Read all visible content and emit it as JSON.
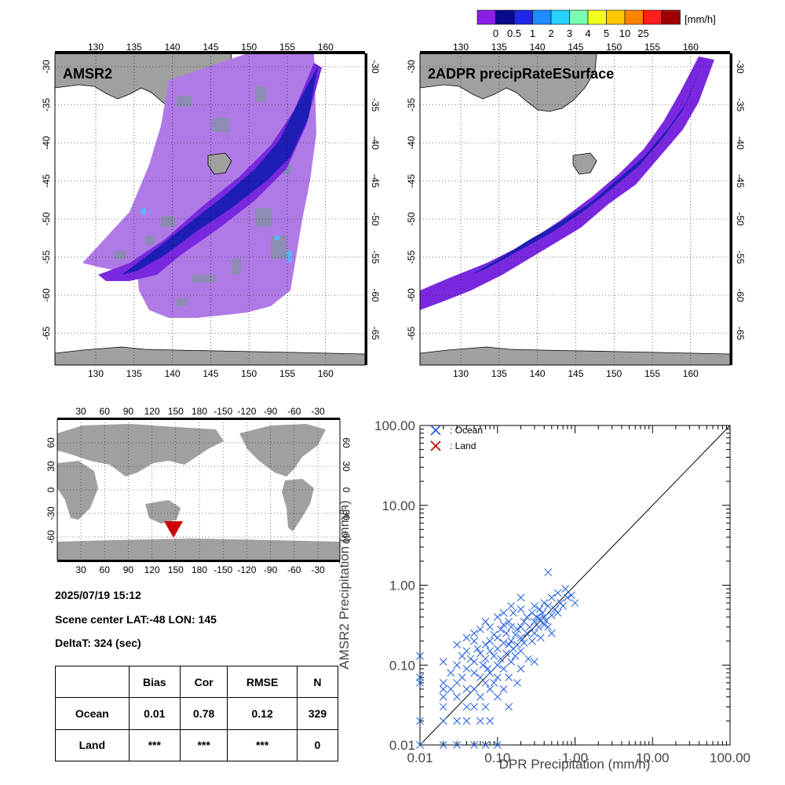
{
  "colorbar": {
    "unit": "[mm/h]",
    "labels": [
      "0",
      "0.5",
      "1",
      "2",
      "3",
      "4",
      "5",
      "10",
      "25"
    ],
    "colors": [
      "#8c1ee6",
      "#0a0a8c",
      "#1e28e6",
      "#1e8cff",
      "#28d2ff",
      "#78ffb4",
      "#f0ff1e",
      "#ffc800",
      "#ff8200",
      "#ff1e1e",
      "#a00000"
    ]
  },
  "map_left": {
    "title": "AMSR2",
    "lon_ticks": [
      "130",
      "135",
      "140",
      "145",
      "150",
      "155",
      "160"
    ],
    "lat_ticks": [
      "-30",
      "-35",
      "-40",
      "-45",
      "-50",
      "-55",
      "-60",
      "-65"
    ]
  },
  "map_right": {
    "title": "2ADPR precipRateESurface",
    "lon_ticks": [
      "130",
      "135",
      "140",
      "145",
      "150",
      "155",
      "160"
    ],
    "lat_ticks": [
      "-30",
      "-35",
      "-40",
      "-45",
      "-50",
      "-55",
      "-60",
      "-65"
    ]
  },
  "world_map": {
    "lon_ticks": [
      "30",
      "60",
      "90",
      "120",
      "150",
      "180",
      "-150",
      "-120",
      "-90",
      "-60",
      "-30"
    ],
    "lat_ticks": [
      "60",
      "30",
      "0",
      "-30",
      "-60"
    ],
    "marker_color": "#cc0000"
  },
  "info": {
    "datetime": "2025/07/19 15:12",
    "scene_center": "Scene center LAT:-48   LON: 145",
    "delta_t": "DeltaT:  324 (sec)"
  },
  "stats_table": {
    "headers": [
      "",
      "Bias",
      "Cor",
      "RMSE",
      "N"
    ],
    "rows": [
      [
        "Ocean",
        "0.01",
        "0.78",
        "0.12",
        "329"
      ],
      [
        "Land",
        "***",
        "***",
        "***",
        "0"
      ]
    ]
  },
  "chart_data": {
    "type": "scatter",
    "xlabel": "DPR Precipitation (mm/h)",
    "ylabel": "AMSR2 Precipitation (mm/h)",
    "xscale": "log",
    "yscale": "log",
    "xlim": [
      0.01,
      100
    ],
    "ylim": [
      0.01,
      100
    ],
    "x_tick_labels": [
      "0.01",
      "0.10",
      "1.00",
      "10.00",
      "100.00"
    ],
    "y_tick_labels": [
      "0.01",
      "0.10",
      "1.00",
      "10.00",
      "100.00"
    ],
    "legend_placement": "top-left",
    "series": [
      {
        "name": ": Ocean",
        "color": "#1e5adc",
        "marker": "x",
        "points": [
          [
            0.01,
            0.13
          ],
          [
            0.01,
            0.07
          ],
          [
            0.01,
            0.06
          ],
          [
            0.01,
            0.02
          ],
          [
            0.01,
            0.01
          ],
          [
            0.02,
            0.06
          ],
          [
            0.02,
            0.05
          ],
          [
            0.02,
            0.04
          ],
          [
            0.02,
            0.03
          ],
          [
            0.02,
            0.02
          ],
          [
            0.02,
            0.11
          ],
          [
            0.02,
            0.01
          ],
          [
            0.025,
            0.08
          ],
          [
            0.025,
            0.05
          ],
          [
            0.03,
            0.18
          ],
          [
            0.03,
            0.1
          ],
          [
            0.03,
            0.06
          ],
          [
            0.03,
            0.04
          ],
          [
            0.03,
            0.02
          ],
          [
            0.03,
            0.01
          ],
          [
            0.035,
            0.13
          ],
          [
            0.035,
            0.07
          ],
          [
            0.04,
            0.22
          ],
          [
            0.04,
            0.15
          ],
          [
            0.04,
            0.09
          ],
          [
            0.04,
            0.05
          ],
          [
            0.04,
            0.03
          ],
          [
            0.04,
            0.02
          ],
          [
            0.045,
            0.12
          ],
          [
            0.05,
            0.25
          ],
          [
            0.05,
            0.2
          ],
          [
            0.05,
            0.11
          ],
          [
            0.05,
            0.08
          ],
          [
            0.05,
            0.05
          ],
          [
            0.05,
            0.03
          ],
          [
            0.05,
            0.01
          ],
          [
            0.055,
            0.16
          ],
          [
            0.06,
            0.28
          ],
          [
            0.06,
            0.14
          ],
          [
            0.06,
            0.07
          ],
          [
            0.06,
            0.04
          ],
          [
            0.06,
            0.02
          ],
          [
            0.065,
            0.1
          ],
          [
            0.07,
            0.35
          ],
          [
            0.07,
            0.18
          ],
          [
            0.07,
            0.12
          ],
          [
            0.07,
            0.06
          ],
          [
            0.07,
            0.03
          ],
          [
            0.07,
            0.01
          ],
          [
            0.075,
            0.09
          ],
          [
            0.08,
            0.3
          ],
          [
            0.08,
            0.2
          ],
          [
            0.08,
            0.15
          ],
          [
            0.08,
            0.08
          ],
          [
            0.08,
            0.05
          ],
          [
            0.08,
            0.02
          ],
          [
            0.09,
            0.24
          ],
          [
            0.09,
            0.13
          ],
          [
            0.09,
            0.06
          ],
          [
            0.1,
            0.4
          ],
          [
            0.1,
            0.22
          ],
          [
            0.1,
            0.16
          ],
          [
            0.1,
            0.1
          ],
          [
            0.1,
            0.07
          ],
          [
            0.1,
            0.04
          ],
          [
            0.1,
            0.01
          ],
          [
            0.11,
            0.28
          ],
          [
            0.11,
            0.12
          ],
          [
            0.12,
            0.32
          ],
          [
            0.12,
            0.19
          ],
          [
            0.12,
            0.09
          ],
          [
            0.12,
            0.05
          ],
          [
            0.13,
            0.25
          ],
          [
            0.13,
            0.14
          ],
          [
            0.14,
            0.35
          ],
          [
            0.14,
            0.18
          ],
          [
            0.14,
            0.07
          ],
          [
            0.14,
            0.03
          ],
          [
            0.15,
            0.3
          ],
          [
            0.15,
            0.2
          ],
          [
            0.15,
            0.11
          ],
          [
            0.16,
            0.45
          ],
          [
            0.16,
            0.16
          ],
          [
            0.17,
            0.24
          ],
          [
            0.17,
            0.13
          ],
          [
            0.18,
            0.28
          ],
          [
            0.18,
            0.18
          ],
          [
            0.18,
            0.06
          ],
          [
            0.2,
            0.5
          ],
          [
            0.2,
            0.3
          ],
          [
            0.2,
            0.22
          ],
          [
            0.2,
            0.15
          ],
          [
            0.2,
            0.09
          ],
          [
            0.22,
            0.35
          ],
          [
            0.22,
            0.19
          ],
          [
            0.24,
            0.4
          ],
          [
            0.24,
            0.25
          ],
          [
            0.25,
            0.12
          ],
          [
            0.26,
            0.3
          ],
          [
            0.28,
            0.45
          ],
          [
            0.28,
            0.2
          ],
          [
            0.3,
            0.55
          ],
          [
            0.3,
            0.35
          ],
          [
            0.3,
            0.25
          ],
          [
            0.3,
            0.11
          ],
          [
            0.32,
            0.4
          ],
          [
            0.34,
            0.3
          ],
          [
            0.35,
            0.5
          ],
          [
            0.35,
            0.38
          ],
          [
            0.36,
            0.22
          ],
          [
            0.38,
            0.45
          ],
          [
            0.4,
            0.6
          ],
          [
            0.4,
            0.4
          ],
          [
            0.4,
            0.32
          ],
          [
            0.42,
            0.36
          ],
          [
            0.45,
            0.55
          ],
          [
            0.45,
            0.3
          ],
          [
            0.5,
            0.7
          ],
          [
            0.5,
            0.42
          ],
          [
            0.5,
            0.25
          ],
          [
            0.55,
            0.5
          ],
          [
            0.6,
            0.8
          ],
          [
            0.6,
            0.45
          ],
          [
            0.65,
            0.6
          ],
          [
            0.7,
            0.55
          ],
          [
            0.75,
            0.9
          ],
          [
            0.8,
            0.7
          ],
          [
            0.9,
            0.75
          ],
          [
            1.0,
            0.6
          ],
          [
            0.45,
            1.45
          ],
          [
            0.2,
            0.7
          ],
          [
            0.15,
            0.55
          ],
          [
            0.12,
            0.45
          ]
        ]
      },
      {
        "name": ": Land",
        "color": "#c80000",
        "marker": "x",
        "points": []
      }
    ]
  }
}
